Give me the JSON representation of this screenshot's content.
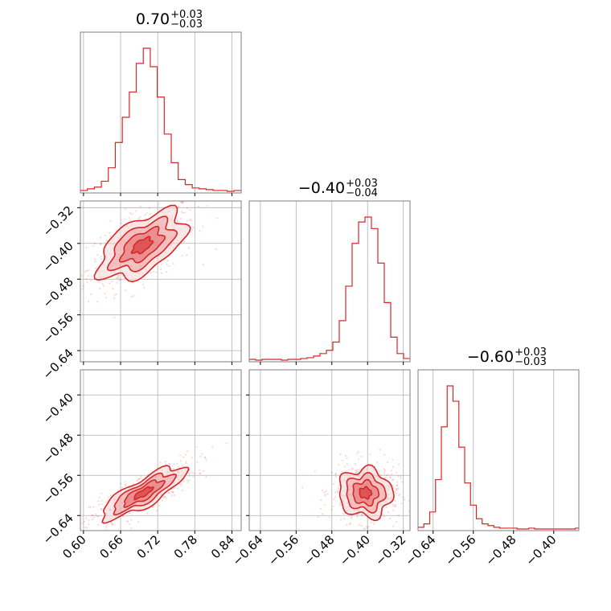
{
  "colors": {
    "accent": "#d62728",
    "fill_light": "#f8d7d7",
    "fill_mid": "#efa3a3",
    "fill_dark": "#e36a6a",
    "grid": "#b0b0b0",
    "frame": "#7f7f7f"
  },
  "chart_data": {
    "type": "corner",
    "titles": [
      {
        "value": "0.70",
        "plus": "+0.03",
        "minus": "−0.03"
      },
      {
        "value": "−0.40",
        "plus": "+0.03",
        "minus": "−0.04"
      },
      {
        "value": "−0.60",
        "plus": "+0.03",
        "minus": "−0.03"
      }
    ],
    "param_ranges": [
      [
        0.595,
        0.855
      ],
      [
        -0.665,
        -0.305
      ],
      [
        -0.67,
        -0.35
      ]
    ],
    "ticks": [
      {
        "values": [
          0.6,
          0.66,
          0.72,
          0.78,
          0.84
        ],
        "labels": [
          "0.60",
          "0.66",
          "0.72",
          "0.78",
          "0.84"
        ]
      },
      {
        "values": [
          -0.64,
          -0.56,
          -0.48,
          -0.4,
          -0.32
        ],
        "labels": [
          "−0.64",
          "−0.56",
          "−0.48",
          "−0.40",
          "−0.32"
        ]
      },
      {
        "values": [
          -0.64,
          -0.56,
          -0.48,
          -0.4
        ],
        "labels": [
          "−0.64",
          "−0.56",
          "−0.48",
          "−0.40"
        ]
      }
    ],
    "histograms": [
      {
        "param": 0,
        "bin_edges": [
          0.595,
          0.6063,
          0.6176,
          0.6289,
          0.6402,
          0.6515,
          0.6628,
          0.6741,
          0.6854,
          0.6967,
          0.708,
          0.7193,
          0.7306,
          0.7419,
          0.7532,
          0.7645,
          0.7758,
          0.7871,
          0.7984,
          0.8097,
          0.821,
          0.8323,
          0.8436,
          0.855
        ],
        "counts": [
          1,
          3,
          5,
          12,
          28,
          58,
          88,
          118,
          152,
          170,
          148,
          112,
          68,
          34,
          14,
          8,
          4,
          3,
          2,
          1,
          1,
          0,
          1
        ]
      },
      {
        "param": 1,
        "bin_edges": [
          -0.665,
          -0.6506,
          -0.6362,
          -0.6218,
          -0.6074,
          -0.593,
          -0.5786,
          -0.5642,
          -0.5498,
          -0.5354,
          -0.521,
          -0.5066,
          -0.4922,
          -0.4778,
          -0.4634,
          -0.449,
          -0.4346,
          -0.4202,
          -0.4058,
          -0.3914,
          -0.377,
          -0.3626,
          -0.3482,
          -0.3338,
          -0.3194,
          -0.305
        ],
        "counts": [
          1,
          0,
          1,
          1,
          1,
          0,
          1,
          1,
          2,
          3,
          5,
          8,
          12,
          22,
          48,
          90,
          142,
          168,
          174,
          160,
          118,
          70,
          28,
          8,
          2
        ]
      },
      {
        "param": 2,
        "bin_edges": [
          -0.67,
          -0.6584,
          -0.6468,
          -0.6352,
          -0.6236,
          -0.612,
          -0.6004,
          -0.5888,
          -0.5772,
          -0.5656,
          -0.554,
          -0.5424,
          -0.5308,
          -0.5192,
          -0.5076,
          -0.496,
          -0.4844,
          -0.4728,
          -0.4612,
          -0.4496,
          -0.438,
          -0.4264,
          -0.4148,
          -0.4032,
          -0.3916,
          -0.38,
          -0.3684,
          -0.3568,
          -0.35
        ],
        "counts": [
          2,
          6,
          20,
          58,
          120,
          168,
          150,
          96,
          54,
          28,
          12,
          6,
          4,
          2,
          1,
          1,
          1,
          0,
          0,
          1,
          0,
          0,
          0,
          0,
          0,
          0,
          0,
          1
        ]
      }
    ],
    "scatter_2d": [
      {
        "x_param": 0,
        "y_param": 1,
        "mean": [
          0.695,
          -0.405
        ],
        "sd": [
          0.035,
          0.038
        ],
        "rho": 0.55,
        "n": 520
      },
      {
        "x_param": 0,
        "y_param": 2,
        "mean": [
          0.697,
          -0.595
        ],
        "sd": [
          0.034,
          0.026
        ],
        "rho": 0.82,
        "n": 520
      },
      {
        "x_param": 1,
        "y_param": 2,
        "mean": [
          -0.405,
          -0.595
        ],
        "sd": [
          0.03,
          0.024
        ],
        "rho": -0.05,
        "n": 520
      }
    ],
    "grid": true
  }
}
